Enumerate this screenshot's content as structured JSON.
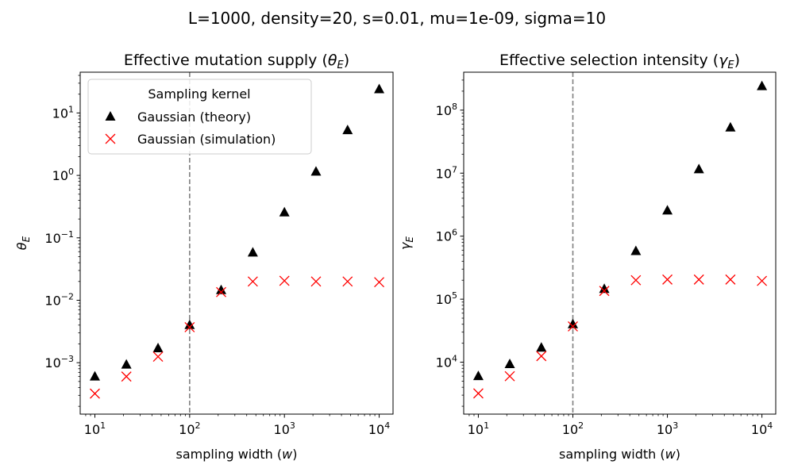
{
  "figure": {
    "suptitle": "L=1000, density=20, s=0.01, mu=1e-09, sigma=10"
  },
  "chart_data": [
    {
      "type": "scatter",
      "title": "Effective mutation supply (θ_E)",
      "title_main": "Effective mutation supply (",
      "title_sym": "θ",
      "title_sub": "E",
      "title_close": ")",
      "xlabel": "sampling width (w)",
      "xlabel_main": "sampling width (",
      "xlabel_sym": "w",
      "xlabel_close": ")",
      "ylabel": "θ_E",
      "ylabel_sym": "θ",
      "ylabel_sub": "E",
      "xscale": "log",
      "yscale": "log",
      "xlim": [
        7,
        14000
      ],
      "ylim": [
        0.00015,
        45
      ],
      "x_ticks": [
        {
          "base": "10",
          "exp": "1",
          "value": 10
        },
        {
          "base": "10",
          "exp": "2",
          "value": 100
        },
        {
          "base": "10",
          "exp": "3",
          "value": 1000
        },
        {
          "base": "10",
          "exp": "4",
          "value": 10000
        }
      ],
      "y_ticks": [
        {
          "base": "10",
          "exp": "−3",
          "value": 0.001
        },
        {
          "base": "10",
          "exp": "−2",
          "value": 0.01
        },
        {
          "base": "10",
          "exp": "−1",
          "value": 0.1
        },
        {
          "base": "10",
          "exp": "0",
          "value": 1
        },
        {
          "base": "10",
          "exp": "1",
          "value": 10
        }
      ],
      "vline": {
        "x": 100,
        "style": "dashed",
        "color": "#808080"
      },
      "grid": false,
      "legend": {
        "title": "Sampling kernel",
        "placement": "upper left",
        "entries": [
          "Gaussian (theory)",
          "Gaussian (simulation)"
        ]
      },
      "series": [
        {
          "name": "Gaussian (theory)",
          "marker": "triangle",
          "color": "#000000",
          "x": [
            10,
            21.5,
            46.4,
            100,
            215,
            464,
            1000,
            2154,
            4642,
            10000
          ],
          "y": [
            0.0006,
            0.00093,
            0.0017,
            0.004,
            0.0145,
            0.058,
            0.255,
            1.15,
            5.3,
            24
          ]
        },
        {
          "name": "Gaussian (simulation)",
          "marker": "x",
          "color": "#ff0000",
          "x": [
            10,
            21.5,
            46.4,
            100,
            215,
            464,
            1000,
            2154,
            4642,
            10000
          ],
          "y": [
            0.00032,
            0.0006,
            0.00125,
            0.0037,
            0.0135,
            0.02,
            0.0205,
            0.02,
            0.02,
            0.0195
          ]
        }
      ]
    },
    {
      "type": "scatter",
      "title": "Effective selection intensity (γ_E)",
      "title_main": "Effective selection intensity (",
      "title_sym": "γ",
      "title_sub": "E",
      "title_close": ")",
      "xlabel": "sampling width (w)",
      "xlabel_main": "sampling width (",
      "xlabel_sym": "w",
      "xlabel_close": ")",
      "ylabel": "γ_E",
      "ylabel_sym": "γ",
      "ylabel_sub": "E",
      "xscale": "log",
      "yscale": "log",
      "xlim": [
        7,
        14000
      ],
      "ylim": [
        1500,
        400000000
      ],
      "x_ticks": [
        {
          "base": "10",
          "exp": "1",
          "value": 10
        },
        {
          "base": "10",
          "exp": "2",
          "value": 100
        },
        {
          "base": "10",
          "exp": "3",
          "value": 1000
        },
        {
          "base": "10",
          "exp": "4",
          "value": 10000
        }
      ],
      "y_ticks": [
        {
          "base": "10",
          "exp": "4",
          "value": 10000
        },
        {
          "base": "10",
          "exp": "5",
          "value": 100000
        },
        {
          "base": "10",
          "exp": "6",
          "value": 1000000
        },
        {
          "base": "10",
          "exp": "7",
          "value": 10000000
        },
        {
          "base": "10",
          "exp": "8",
          "value": 100000000
        }
      ],
      "vline": {
        "x": 100,
        "style": "dashed",
        "color": "#808080"
      },
      "grid": false,
      "series": [
        {
          "name": "Gaussian (theory)",
          "marker": "triangle",
          "color": "#000000",
          "x": [
            10,
            21.5,
            46.4,
            100,
            215,
            464,
            1000,
            2154,
            4642,
            10000
          ],
          "y": [
            6000,
            9300,
            17000,
            40000,
            145000,
            580000,
            2550000,
            11500000,
            53000000,
            240000000
          ]
        },
        {
          "name": "Gaussian (simulation)",
          "marker": "x",
          "color": "#ff0000",
          "x": [
            10,
            21.5,
            46.4,
            100,
            215,
            464,
            1000,
            2154,
            4642,
            10000
          ],
          "y": [
            3200,
            6000,
            12500,
            37000,
            135000,
            200000,
            205000,
            205000,
            205000,
            195000
          ]
        }
      ]
    }
  ]
}
